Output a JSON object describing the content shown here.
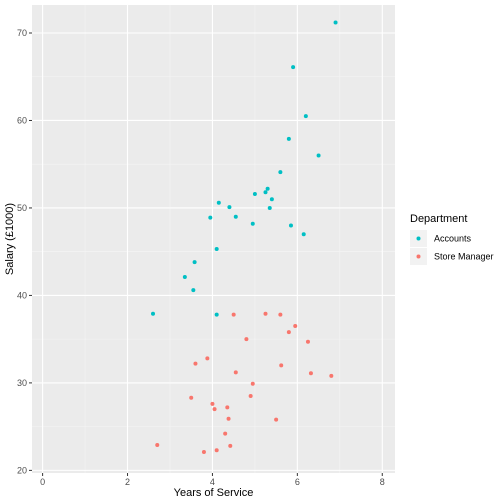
{
  "chart_data": {
    "type": "scatter",
    "title": "",
    "xlabel": "Years of Service",
    "ylabel": "Salary (£1000)",
    "xlim": [
      -0.25,
      8.3
    ],
    "ylim": [
      19.7,
      73.2
    ],
    "x_ticks": [
      0,
      2,
      4,
      6,
      8
    ],
    "y_ticks": [
      20,
      30,
      40,
      50,
      60,
      70
    ],
    "x_tick_labels": [
      "0",
      "2",
      "4",
      "6",
      "8"
    ],
    "y_tick_labels": [
      "20",
      "30",
      "40",
      "50",
      "60",
      "70"
    ],
    "grid": true,
    "legend": {
      "title": "Department",
      "placement": "right",
      "entries": [
        "Accounts",
        "Store Manager"
      ]
    },
    "series": [
      {
        "name": "Accounts",
        "color": "#00BFC4",
        "points": [
          [
            2.6,
            37.9
          ],
          [
            3.35,
            42.1
          ],
          [
            3.55,
            40.6
          ],
          [
            3.58,
            43.8
          ],
          [
            3.95,
            48.9
          ],
          [
            4.1,
            45.3
          ],
          [
            4.1,
            37.8
          ],
          [
            4.15,
            50.6
          ],
          [
            4.4,
            50.1
          ],
          [
            4.55,
            49.0
          ],
          [
            4.95,
            48.2
          ],
          [
            5.0,
            51.6
          ],
          [
            5.25,
            51.8
          ],
          [
            5.3,
            52.2
          ],
          [
            5.35,
            50.0
          ],
          [
            5.4,
            51.0
          ],
          [
            5.6,
            54.1
          ],
          [
            5.8,
            57.9
          ],
          [
            5.85,
            48.0
          ],
          [
            5.9,
            66.1
          ],
          [
            6.15,
            47.0
          ],
          [
            6.2,
            60.5
          ],
          [
            6.5,
            56.0
          ],
          [
            6.9,
            71.2
          ]
        ]
      },
      {
        "name": "Store Manager",
        "color": "#F8766D",
        "points": [
          [
            2.7,
            22.9
          ],
          [
            3.5,
            28.3
          ],
          [
            3.6,
            32.2
          ],
          [
            3.8,
            22.1
          ],
          [
            3.88,
            32.8
          ],
          [
            4.0,
            27.6
          ],
          [
            4.05,
            27.0
          ],
          [
            4.1,
            22.3
          ],
          [
            4.3,
            24.2
          ],
          [
            4.35,
            27.2
          ],
          [
            4.38,
            25.9
          ],
          [
            4.42,
            22.8
          ],
          [
            4.5,
            37.8
          ],
          [
            4.55,
            31.2
          ],
          [
            4.8,
            35.0
          ],
          [
            4.9,
            28.5
          ],
          [
            4.95,
            29.9
          ],
          [
            5.25,
            37.9
          ],
          [
            5.5,
            25.8
          ],
          [
            5.6,
            37.8
          ],
          [
            5.62,
            32.0
          ],
          [
            5.8,
            35.8
          ],
          [
            5.95,
            36.5
          ],
          [
            6.25,
            34.7
          ],
          [
            6.32,
            31.1
          ],
          [
            6.8,
            30.8
          ]
        ]
      }
    ]
  },
  "style": {
    "panel_bg": "#EBEBEB",
    "grid_major": "#FFFFFF",
    "grid_minor": "#F5F5F5"
  }
}
